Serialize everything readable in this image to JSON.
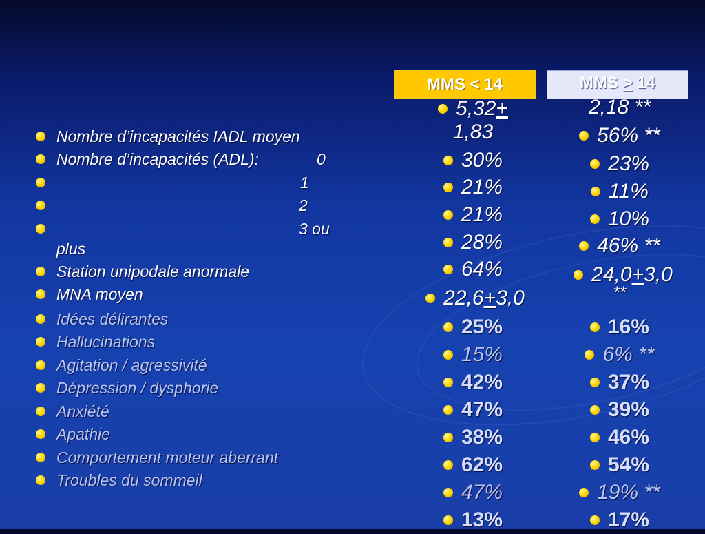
{
  "headers": {
    "left": {
      "pre": "MMS ",
      "sym": "<",
      "post": " 14"
    },
    "right": {
      "pre": "MMS ",
      "sym": ">",
      "post": " 14"
    }
  },
  "rows": [
    {
      "label": "Nombre d’incapacités IADL moyen"
    },
    {
      "label": "Nombre d’incapacités (ADL):",
      "sub": "0"
    },
    {
      "label": "",
      "sub": "1"
    },
    {
      "label": "",
      "sub": "2"
    },
    {
      "label": "",
      "sub": "3 ou",
      "cont": "plus"
    },
    {
      "label": "Station unipodale anormale"
    },
    {
      "label": "MNA moyen"
    },
    {
      "label": "Idées délirantes"
    },
    {
      "label": "Hallucinations"
    },
    {
      "label": "Agitation / agressivité"
    },
    {
      "label": "Dépression / dysphorie"
    },
    {
      "label": "Anxiété"
    },
    {
      "label": "Apathie"
    },
    {
      "label": "Comportement moteur aberrant"
    },
    {
      "label": "Troubles du sommeil"
    }
  ],
  "mms_low": {
    "iadl": {
      "a": "5,32 ",
      "pm": "+",
      "b": "1,83"
    },
    "adl0": "30%",
    "adl1": "21%",
    "adl2": "21%",
    "adl3": "28%",
    "station": "64%",
    "mna": {
      "a": "22,6 ",
      "pm": "+",
      "b": " 3,0"
    },
    "delire": "25%",
    "halluc": "15%",
    "agit": "42%",
    "depr": "47%",
    "anx": "38%",
    "apathie": "62%",
    "moteur": "47%",
    "sommeil": "13%"
  },
  "mms_high": {
    "iadl": "2,18 **",
    "adl0": "56% **",
    "adl1": "23%",
    "adl2": "11%",
    "adl3": "10%",
    "station": "46% **",
    "mna": {
      "a": "24,0 ",
      "pm": "+",
      "b": " 3,0",
      "c": "**"
    },
    "delire": "16%",
    "halluc": "6% **",
    "agit": "37%",
    "depr": "39%",
    "anx": "46%",
    "apathie": "54%",
    "moteur": "19% **",
    "sommeil": "17%"
  },
  "colors": {
    "header_left_bg": "#ffc800",
    "header_right_bg": "#e4e8f8",
    "bullet": "#ffd800",
    "bg": "#1642b0"
  }
}
